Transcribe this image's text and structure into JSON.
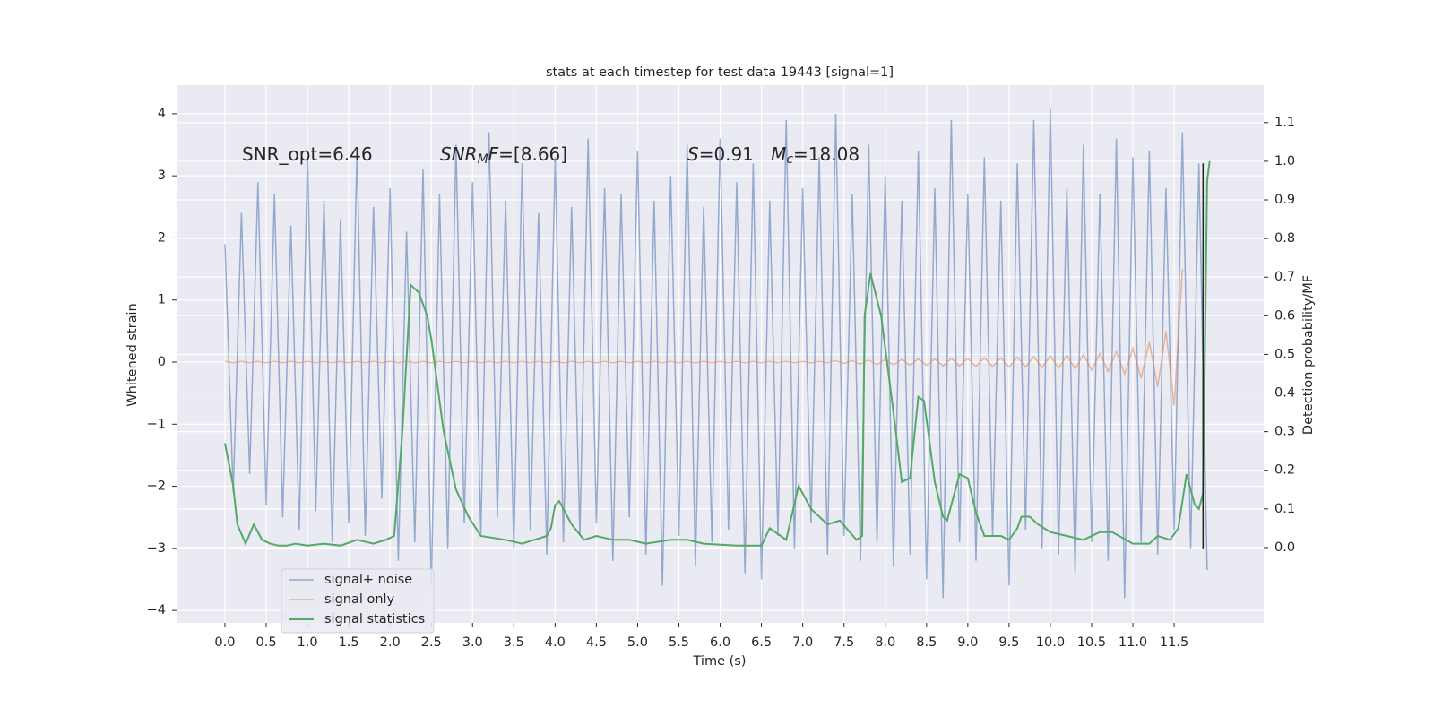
{
  "chart_data": {
    "type": "line",
    "title": "stats at each timestep for test data 19443 [signal=1]",
    "xlabel": "Time (s)",
    "ylabel": "Whitened strain",
    "y2label": "Detection probability/MF",
    "annotations": [
      [
        {
          "text": "SNR_opt=6.46"
        }
      ],
      [
        {
          "text": "SNR",
          "italic": true
        },
        {
          "text": "M",
          "italic": true,
          "sub": true
        },
        {
          "text": "F",
          "italic": true
        },
        {
          "text": "=[8.66]"
        }
      ],
      [
        {
          "text": "S",
          "italic": true
        },
        {
          "text": "=0.91   "
        },
        {
          "text": "M",
          "italic": true
        },
        {
          "text": "c",
          "italic": true,
          "sub": true
        },
        {
          "text": "=18.08"
        }
      ]
    ],
    "x": [
      0.0,
      0.1,
      0.2,
      0.3,
      0.4,
      0.5,
      0.6,
      0.7,
      0.8,
      0.9,
      1.0,
      1.1,
      1.2,
      1.3,
      1.4,
      1.5,
      1.6,
      1.7,
      1.8,
      1.9,
      2.0,
      2.1,
      2.2,
      2.3,
      2.4,
      2.5,
      2.6,
      2.7,
      2.8,
      2.9,
      3.0,
      3.1,
      3.2,
      3.3,
      3.4,
      3.5,
      3.6,
      3.7,
      3.8,
      3.9,
      4.0,
      4.1,
      4.2,
      4.3,
      4.4,
      4.5,
      4.6,
      4.7,
      4.8,
      4.9,
      5.0,
      5.1,
      5.2,
      5.3,
      5.4,
      5.5,
      5.6,
      5.7,
      5.8,
      5.9,
      6.0,
      6.1,
      6.2,
      6.3,
      6.4,
      6.5,
      6.6,
      6.7,
      6.8,
      6.9,
      7.0,
      7.1,
      7.2,
      7.3,
      7.4,
      7.5,
      7.6,
      7.7,
      7.8,
      7.9,
      8.0,
      8.1,
      8.2,
      8.3,
      8.4,
      8.5,
      8.6,
      8.7,
      8.8,
      8.9,
      9.0,
      9.1,
      9.2,
      9.3,
      9.4,
      9.5,
      9.6,
      9.7,
      9.8,
      9.9,
      10.0,
      10.1,
      10.2,
      10.3,
      10.4,
      10.5,
      10.6,
      10.7,
      10.8,
      10.9,
      11.0,
      11.1,
      11.2,
      11.3,
      11.4,
      11.5,
      11.6,
      11.7,
      11.8,
      11.9
    ],
    "series": [
      {
        "name": "signal+ noise",
        "color": "#4c72b0",
        "values": [
          1.9,
          -2.1,
          2.4,
          -1.8,
          2.9,
          -2.3,
          2.7,
          -2.5,
          2.2,
          -2.7,
          3.3,
          -2.4,
          2.6,
          -2.9,
          2.3,
          -2.6,
          3.4,
          -2.8,
          2.5,
          -2.2,
          2.8,
          -3.2,
          2.1,
          -2.9,
          3.1,
          -3.6,
          2.7,
          -3.0,
          3.5,
          -2.6,
          2.9,
          -2.8,
          3.7,
          -2.5,
          2.6,
          -3.0,
          3.2,
          -2.7,
          2.4,
          -3.1,
          3.3,
          -2.9,
          2.5,
          -2.8,
          3.6,
          -2.6,
          2.8,
          -3.2,
          2.7,
          -2.5,
          3.4,
          -3.1,
          2.6,
          -3.6,
          3.0,
          -2.8,
          3.5,
          -3.3,
          2.5,
          -2.9,
          3.6,
          -2.7,
          2.9,
          -3.4,
          3.2,
          -3.5,
          2.6,
          -2.8,
          3.9,
          -3.0,
          2.8,
          -2.6,
          3.3,
          -3.1,
          4.0,
          -2.8,
          2.7,
          -3.2,
          3.5,
          -2.9,
          3.0,
          -3.3,
          2.6,
          -3.1,
          3.4,
          -3.5,
          2.8,
          -3.8,
          3.9,
          -2.9,
          2.7,
          -3.2,
          3.3,
          -2.8,
          2.6,
          -3.6,
          3.2,
          -2.7,
          3.9,
          -3.0,
          4.1,
          -3.1,
          2.8,
          -3.4,
          3.5,
          -2.9,
          2.7,
          -3.2,
          3.6,
          -3.8,
          3.3,
          -2.9,
          3.4,
          -3.1,
          2.8,
          -2.7,
          3.7,
          -3.0,
          3.2,
          -3.35
        ]
      },
      {
        "name": "signal only",
        "color": "#dd8452",
        "values": [
          0.01,
          -0.01,
          0.01,
          -0.01,
          0.01,
          -0.01,
          0.01,
          -0.01,
          0.01,
          -0.01,
          0.01,
          -0.01,
          0.01,
          -0.01,
          0.01,
          -0.01,
          0.01,
          -0.01,
          0.01,
          -0.01,
          0.01,
          -0.01,
          0.01,
          -0.01,
          0.01,
          -0.01,
          0.01,
          -0.01,
          0.01,
          -0.01,
          0.01,
          -0.01,
          0.01,
          -0.01,
          0.01,
          -0.01,
          0.01,
          -0.01,
          0.01,
          -0.01,
          0.01,
          -0.01,
          0.01,
          -0.01,
          0.01,
          -0.01,
          0.01,
          -0.01,
          0.01,
          -0.01,
          0.01,
          -0.01,
          0.01,
          -0.01,
          0.01,
          -0.01,
          0.01,
          -0.01,
          0.01,
          -0.01,
          0.01,
          -0.01,
          0.01,
          -0.01,
          0.01,
          -0.01,
          0.01,
          -0.01,
          0.01,
          -0.01,
          0.01,
          -0.01,
          0.01,
          -0.01,
          0.02,
          -0.02,
          0.02,
          -0.03,
          0.03,
          -0.04,
          0.04,
          -0.04,
          0.04,
          -0.05,
          0.05,
          -0.05,
          0.05,
          -0.06,
          0.06,
          -0.06,
          0.06,
          -0.07,
          0.07,
          -0.07,
          0.07,
          -0.08,
          0.08,
          -0.08,
          0.09,
          -0.09,
          0.1,
          -0.1,
          0.11,
          -0.11,
          0.12,
          -0.13,
          0.14,
          -0.15,
          0.17,
          -0.19,
          0.22,
          -0.26,
          0.32,
          -0.4,
          0.5,
          -0.7,
          1.5,
          null,
          null,
          null
        ]
      },
      {
        "name": "signal statistics",
        "color": "#55a868",
        "axis": "y2",
        "x": [
          0.0,
          0.1,
          0.15,
          0.25,
          0.35,
          0.45,
          0.55,
          0.65,
          0.75,
          0.85,
          1.0,
          1.2,
          1.4,
          1.6,
          1.8,
          1.95,
          2.05,
          2.15,
          2.25,
          2.35,
          2.45,
          2.5,
          2.65,
          2.8,
          2.95,
          3.1,
          3.4,
          3.6,
          3.9,
          3.95,
          4.0,
          4.05,
          4.2,
          4.35,
          4.5,
          4.7,
          4.9,
          5.1,
          5.4,
          5.6,
          5.8,
          6.2,
          6.5,
          6.6,
          6.8,
          6.95,
          7.1,
          7.3,
          7.45,
          7.65,
          7.72,
          7.75,
          7.82,
          7.95,
          8.1,
          8.2,
          8.3,
          8.4,
          8.47,
          8.6,
          8.7,
          8.75,
          8.8,
          8.9,
          9.0,
          9.1,
          9.2,
          9.4,
          9.5,
          9.6,
          9.65,
          9.75,
          9.85,
          10.0,
          10.2,
          10.4,
          10.6,
          10.75,
          11.0,
          11.2,
          11.3,
          11.45,
          11.55,
          11.65,
          11.75,
          11.8,
          11.85,
          11.9,
          11.93
        ],
        "values": [
          0.27,
          0.16,
          0.06,
          0.01,
          0.06,
          0.02,
          0.01,
          0.005,
          0.005,
          0.01,
          0.005,
          0.01,
          0.005,
          0.02,
          0.01,
          0.02,
          0.03,
          0.3,
          0.68,
          0.66,
          0.6,
          0.54,
          0.3,
          0.15,
          0.08,
          0.03,
          0.02,
          0.01,
          0.03,
          0.05,
          0.11,
          0.12,
          0.06,
          0.02,
          0.03,
          0.02,
          0.02,
          0.01,
          0.02,
          0.02,
          0.01,
          0.005,
          0.005,
          0.05,
          0.02,
          0.16,
          0.1,
          0.06,
          0.07,
          0.02,
          0.03,
          0.6,
          0.71,
          0.6,
          0.35,
          0.17,
          0.18,
          0.39,
          0.38,
          0.17,
          0.08,
          0.07,
          0.11,
          0.19,
          0.18,
          0.09,
          0.03,
          0.03,
          0.02,
          0.05,
          0.08,
          0.08,
          0.06,
          0.04,
          0.03,
          0.02,
          0.04,
          0.04,
          0.01,
          0.01,
          0.03,
          0.02,
          0.05,
          0.19,
          0.11,
          0.1,
          0.14,
          0.95,
          1.0
        ]
      }
    ],
    "vline": {
      "x": 11.85,
      "ymin": -3.0,
      "ymax": 3.2,
      "color": "#222222"
    },
    "xlim": [
      -0.586,
      12.585
    ],
    "ylim": [
      -4.2,
      4.46
    ],
    "y2lim": [
      -0.195,
      1.197
    ],
    "xticks": [
      {
        "value": 0.0,
        "label": "0.0"
      },
      {
        "value": 0.5,
        "label": "0.5"
      },
      {
        "value": 1.0,
        "label": "1.0"
      },
      {
        "value": 1.5,
        "label": "1.5"
      },
      {
        "value": 2.0,
        "label": "2.0"
      },
      {
        "value": 2.5,
        "label": "2.5"
      },
      {
        "value": 3.0,
        "label": "3.0"
      },
      {
        "value": 3.5,
        "label": "3.5"
      },
      {
        "value": 4.0,
        "label": "4.0"
      },
      {
        "value": 4.5,
        "label": "4.5"
      },
      {
        "value": 5.0,
        "label": "5.0"
      },
      {
        "value": 5.5,
        "label": "5.5"
      },
      {
        "value": 6.0,
        "label": "6.0"
      },
      {
        "value": 6.5,
        "label": "6.5"
      },
      {
        "value": 7.0,
        "label": "7.0"
      },
      {
        "value": 7.5,
        "label": "7.5"
      },
      {
        "value": 8.0,
        "label": "8.0"
      },
      {
        "value": 8.5,
        "label": "8.5"
      },
      {
        "value": 9.0,
        "label": "9.0"
      },
      {
        "value": 9.5,
        "label": "9.5"
      },
      {
        "value": 10.0,
        "label": "10.0"
      },
      {
        "value": 10.5,
        "label": "10.5"
      },
      {
        "value": 11.0,
        "label": "11.0"
      },
      {
        "value": 11.5,
        "label": "11.5"
      }
    ],
    "yticks": [
      {
        "value": -4,
        "label": "−4"
      },
      {
        "value": -3,
        "label": "−3"
      },
      {
        "value": -2,
        "label": "−2"
      },
      {
        "value": -1,
        "label": "−1"
      },
      0,
      1,
      2,
      3,
      4
    ],
    "y2ticks": [
      {
        "value": 0.0,
        "label": "0.0"
      },
      {
        "value": 0.1,
        "label": "0.1"
      },
      {
        "value": 0.2,
        "label": "0.2"
      },
      {
        "value": 0.3,
        "label": "0.3"
      },
      {
        "value": 0.4,
        "label": "0.4"
      },
      {
        "value": 0.5,
        "label": "0.5"
      },
      {
        "value": 0.6,
        "label": "0.6"
      },
      {
        "value": 0.7,
        "label": "0.7"
      },
      {
        "value": 0.8,
        "label": "0.8"
      },
      {
        "value": 0.9,
        "label": "0.9"
      },
      {
        "value": 1.0,
        "label": "1.0"
      },
      {
        "value": 1.1,
        "label": "1.1"
      }
    ],
    "grid": true,
    "legend": "lower left"
  }
}
